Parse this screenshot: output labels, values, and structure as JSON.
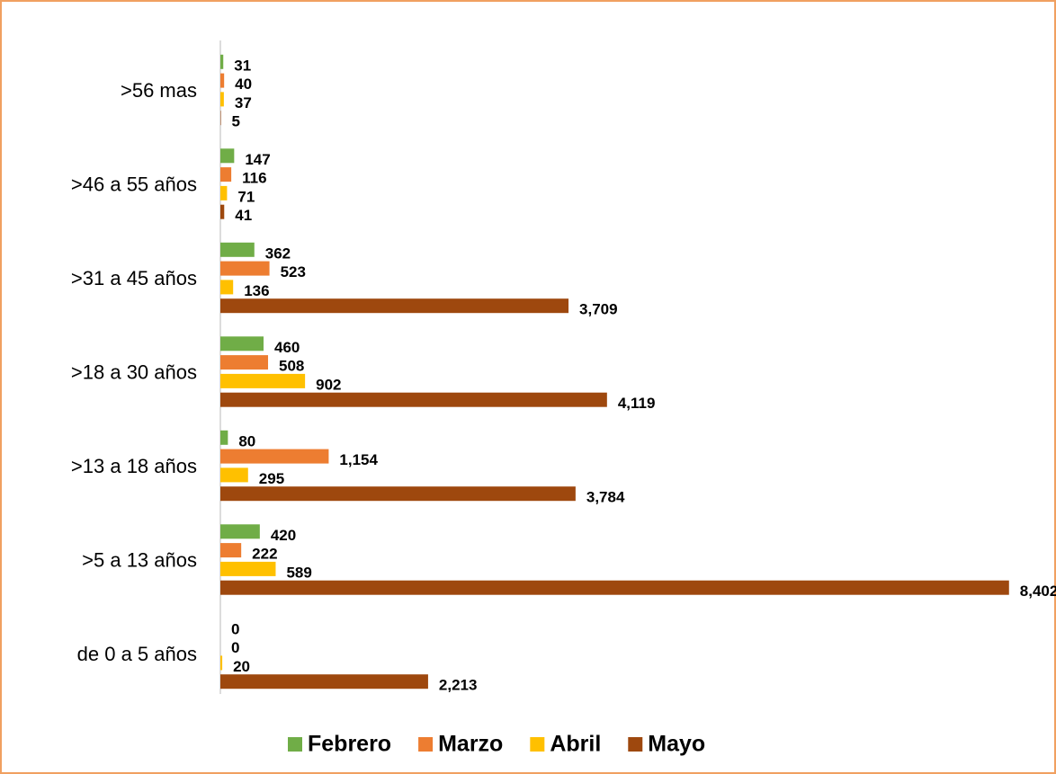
{
  "chart_data": {
    "type": "bar",
    "orientation": "horizontal",
    "categories": [
      ">56 mas",
      ">46 a 55 años",
      ">31 a 45 años",
      ">18 a 30 años",
      ">13 a 18 años",
      ">5 a 13 años",
      "de 0 a 5 años"
    ],
    "series": [
      {
        "name": "Febrero",
        "color": "#70ad47",
        "values": [
          31,
          147,
          362,
          460,
          80,
          420,
          0
        ]
      },
      {
        "name": "Marzo",
        "color": "#ed7d31",
        "values": [
          40,
          116,
          523,
          508,
          1154,
          222,
          0
        ],
        "value_labels": [
          "40",
          "116",
          "523",
          "508",
          "1,154",
          "222",
          "0"
        ]
      },
      {
        "name": "Abril",
        "color": "#ffc000",
        "values": [
          37,
          71,
          136,
          902,
          295,
          589,
          20
        ]
      },
      {
        "name": "Mayo",
        "color": "#9e480e",
        "values": [
          5,
          41,
          3709,
          4119,
          3784,
          8402,
          2213
        ],
        "value_labels": [
          "5",
          "41",
          "3,709",
          "4,119",
          "3,784",
          "8,402",
          "2,213"
        ]
      }
    ],
    "xlim": [
      0,
      8500
    ],
    "legend": "bottom"
  }
}
